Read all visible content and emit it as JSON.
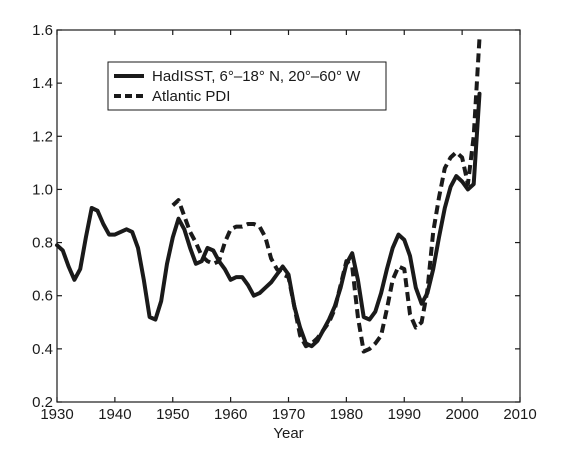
{
  "chart_data": {
    "type": "line",
    "title": "",
    "xlabel": "Year",
    "ylabel": "",
    "xlim": [
      1930,
      2010
    ],
    "ylim": [
      0.2,
      1.6
    ],
    "xticks": [
      1930,
      1940,
      1950,
      1960,
      1970,
      1980,
      1990,
      2000,
      2010
    ],
    "yticks": [
      0.2,
      0.4,
      0.6,
      0.8,
      1.0,
      1.2,
      1.4,
      1.6
    ],
    "ytick_labels": [
      "0.2",
      "0.4",
      "0.6",
      "0.8",
      "1.0",
      "1.2",
      "1.4",
      "1.6"
    ],
    "grid": false,
    "legend_position": "top-left",
    "series": [
      {
        "name": "HadISST, 6°–18° N, 20°–60° W",
        "style": "solid",
        "color": "#1a1a1a",
        "x": [
          1930,
          1931,
          1932,
          1933,
          1934,
          1935,
          1936,
          1937,
          1938,
          1939,
          1940,
          1941,
          1942,
          1943,
          1944,
          1945,
          1946,
          1947,
          1948,
          1949,
          1950,
          1951,
          1952,
          1953,
          1954,
          1955,
          1956,
          1957,
          1958,
          1959,
          1960,
          1961,
          1962,
          1963,
          1964,
          1965,
          1966,
          1967,
          1968,
          1969,
          1970,
          1971,
          1972,
          1973,
          1974,
          1975,
          1976,
          1977,
          1978,
          1979,
          1980,
          1981,
          1982,
          1983,
          1984,
          1985,
          1986,
          1987,
          1988,
          1989,
          1990,
          1991,
          1992,
          1993,
          1994,
          1995,
          1996,
          1997,
          1998,
          1999,
          2000,
          2001,
          2002,
          2003
        ],
        "y": [
          0.79,
          0.77,
          0.71,
          0.66,
          0.7,
          0.82,
          0.93,
          0.92,
          0.87,
          0.83,
          0.83,
          0.84,
          0.85,
          0.84,
          0.78,
          0.66,
          0.52,
          0.51,
          0.58,
          0.72,
          0.82,
          0.89,
          0.85,
          0.78,
          0.72,
          0.73,
          0.78,
          0.77,
          0.73,
          0.7,
          0.66,
          0.67,
          0.67,
          0.64,
          0.6,
          0.61,
          0.63,
          0.65,
          0.68,
          0.71,
          0.68,
          0.56,
          0.48,
          0.42,
          0.41,
          0.43,
          0.47,
          0.51,
          0.56,
          0.63,
          0.72,
          0.76,
          0.66,
          0.52,
          0.51,
          0.54,
          0.61,
          0.7,
          0.78,
          0.83,
          0.81,
          0.75,
          0.63,
          0.57,
          0.61,
          0.7,
          0.82,
          0.93,
          1.01,
          1.05,
          1.03,
          1.0,
          1.02,
          1.36
        ]
      },
      {
        "name": "Atlantic PDI",
        "style": "dashed",
        "color": "#1a1a1a",
        "x": [
          1950,
          1951,
          1952,
          1953,
          1954,
          1955,
          1956,
          1957,
          1958,
          1959,
          1960,
          1961,
          1962,
          1963,
          1964,
          1965,
          1966,
          1967,
          1968,
          1969,
          1970,
          1971,
          1972,
          1973,
          1974,
          1975,
          1976,
          1977,
          1978,
          1979,
          1980,
          1981,
          1982,
          1983,
          1984,
          1985,
          1986,
          1987,
          1988,
          1989,
          1990,
          1991,
          1992,
          1993,
          1994,
          1995,
          1996,
          1997,
          1998,
          1999,
          2000,
          2001,
          2002,
          2003
        ],
        "y": [
          0.94,
          0.96,
          0.9,
          0.84,
          0.8,
          0.75,
          0.73,
          0.72,
          0.73,
          0.8,
          0.85,
          0.86,
          0.86,
          0.87,
          0.87,
          0.86,
          0.82,
          0.74,
          0.7,
          0.68,
          0.67,
          0.56,
          0.45,
          0.41,
          0.42,
          0.44,
          0.47,
          0.5,
          0.55,
          0.64,
          0.73,
          0.71,
          0.52,
          0.39,
          0.4,
          0.42,
          0.45,
          0.55,
          0.66,
          0.71,
          0.7,
          0.53,
          0.48,
          0.5,
          0.62,
          0.84,
          0.97,
          1.08,
          1.12,
          1.14,
          1.12,
          1.02,
          1.2,
          1.57
        ]
      }
    ]
  }
}
